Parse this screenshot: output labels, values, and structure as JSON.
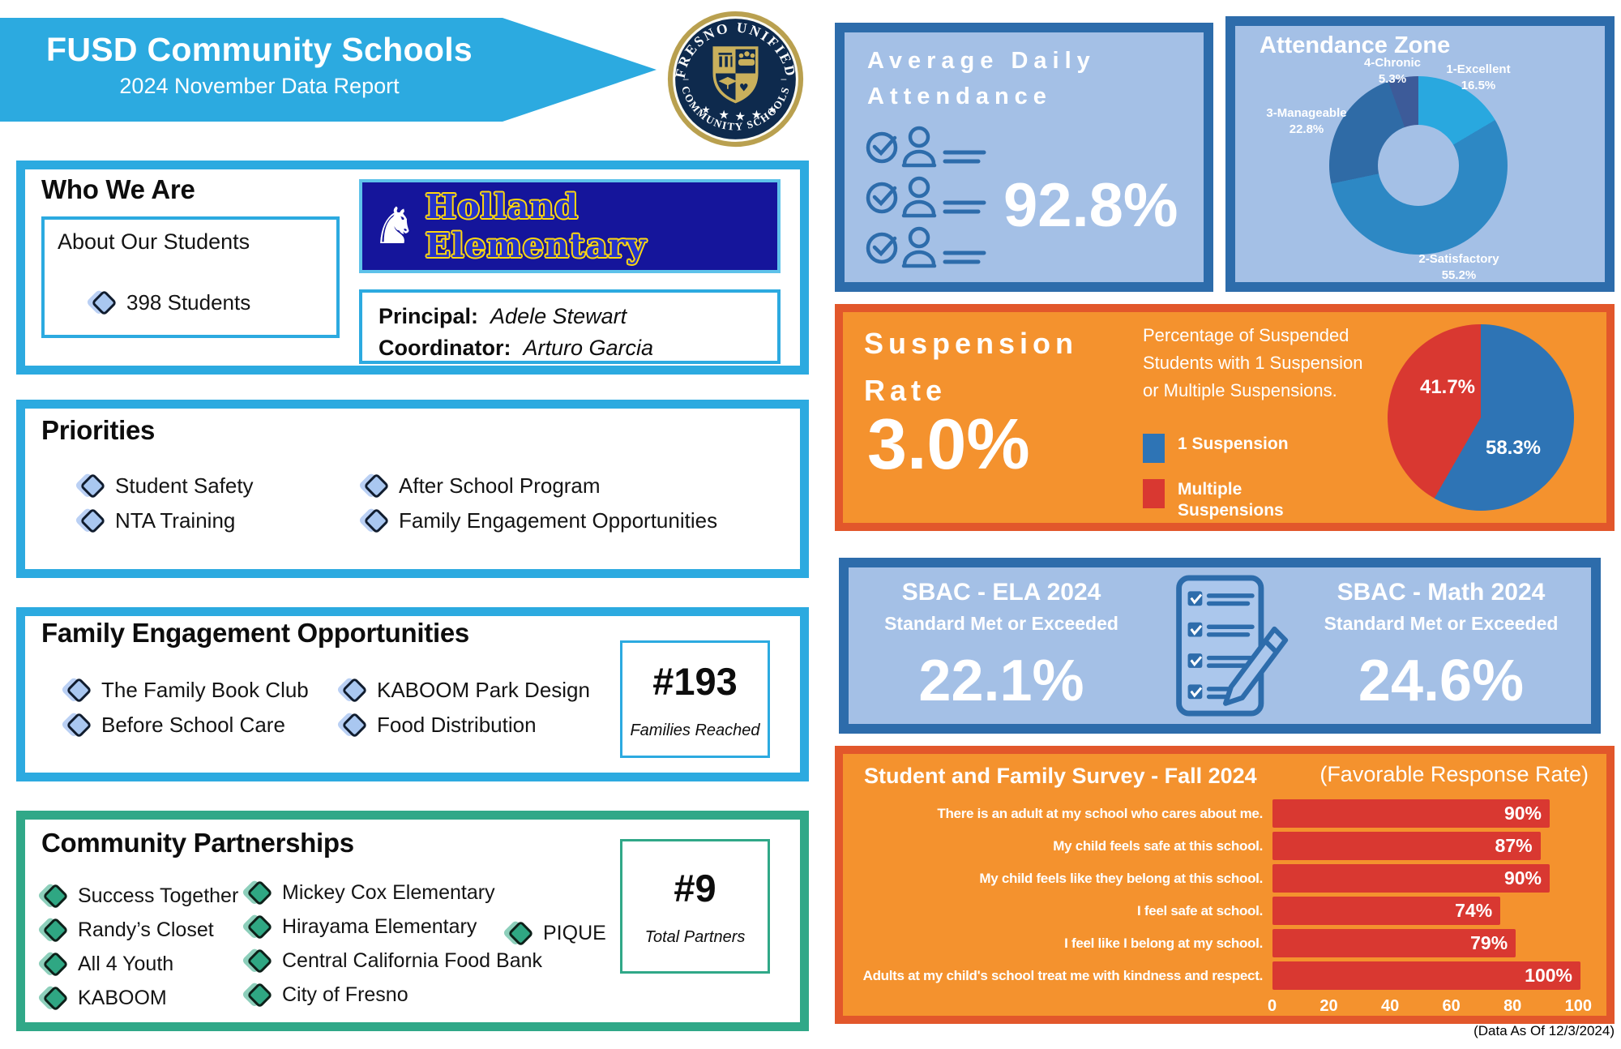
{
  "colors": {
    "cyan": "#2caae0",
    "green": "#30a888",
    "panel_blue_bg": "#a4c0e6",
    "panel_blue_border": "#2d6cab",
    "orange_bg": "#f4922e",
    "orange_border": "#e2572b",
    "bar_red": "#d93831",
    "legend_blue": "#2e74b5",
    "banner_navy": "#15159b",
    "seal_navy": "#0e2a4d",
    "seal_gold": "#b9a04f"
  },
  "header": {
    "title": "FUSD Community Schools",
    "subtitle": "2024 November Data Report",
    "seal_top": "FRESNO UNIFIED",
    "seal_bottom": "COMMUNITY SCHOOLS"
  },
  "who_we_are": {
    "title": "Who We Are",
    "about_title": "About Our Students",
    "students": "398 Students",
    "school_name": "Holland Elementary",
    "principal_label": "Principal:",
    "principal_name": "Adele Stewart",
    "coordinator_label": "Coordinator:",
    "coordinator_name": "Arturo Garcia"
  },
  "priorities": {
    "title": "Priorities",
    "items": [
      "Student Safety",
      "NTA Training",
      "After School Program",
      "Family Engagement Opportunities"
    ]
  },
  "family_engagement": {
    "title": "Family Engagement Opportunities",
    "items": [
      "The Family Book Club",
      "Before School Care",
      "KABOOM Park Design",
      "Food Distribution"
    ],
    "count": "#193",
    "count_label": "Families Reached"
  },
  "partnerships": {
    "title": "Community Partnerships",
    "col1": [
      "Success Together",
      "Randy’s Closet",
      "All 4 Youth",
      "KABOOM"
    ],
    "col2": [
      "Mickey Cox Elementary",
      "Hirayama Elementary",
      "Central California Food Bank",
      "City of Fresno"
    ],
    "col3": [
      "PIQUE"
    ],
    "count": "#9",
    "count_label": "Total Partners"
  },
  "attendance": {
    "title_line1": "Average Daily",
    "title_line2": "Attendance",
    "value": "92.8%"
  },
  "attendance_zone": {
    "title": "Attendance Zone",
    "slices": [
      {
        "name": "1-Excellent",
        "pct": "16.5%"
      },
      {
        "name": "2-Satisfactory",
        "pct": "55.2%"
      },
      {
        "name": "3-Manageable",
        "pct": "22.8%"
      },
      {
        "name": "4-Chronic",
        "pct": "5.3%"
      }
    ]
  },
  "suspension": {
    "title_line1": "Suspension",
    "title_line2": "Rate",
    "value": "3.0%",
    "description": "Percentage of Suspended Students with 1 Suspension or Multiple Suspensions.",
    "legend": [
      {
        "label": "1 Suspension"
      },
      {
        "label": "Multiple Suspensions"
      }
    ],
    "pie_label_multiple": "41.7%",
    "pie_label_single": "58.3%"
  },
  "sbac": {
    "ela_title": "SBAC - ELA 2024",
    "ela_subtitle": "Standard Met or Exceeded",
    "ela_value": "22.1%",
    "math_title": "SBAC - Math 2024",
    "math_subtitle": "Standard Met or Exceeded",
    "math_value": "24.6%"
  },
  "survey": {
    "title": "Student and Family Survey - Fall 2024",
    "subtitle": "(Favorable Response Rate)"
  },
  "footer_note": "(Data As Of 12/3/2024)",
  "chart_data": [
    {
      "type": "pie",
      "style": "donut",
      "title": "Attendance Zone",
      "labels": [
        "1-Excellent",
        "2-Satisfactory",
        "3-Manageable",
        "4-Chronic"
      ],
      "values": [
        16.5,
        55.2,
        22.8,
        5.3
      ],
      "colors": [
        "#29a8df",
        "#2d88c4",
        "#2f6ba6",
        "#3d5b99"
      ],
      "start_angle_deg": 0,
      "direction": "clockwise",
      "legend_position": "around-slices"
    },
    {
      "type": "pie",
      "title": "Percentage of Suspended Students with 1 Suspension or Multiple Suspensions",
      "labels": [
        "1 Suspension",
        "Multiple Suspensions"
      ],
      "values": [
        58.3,
        41.7
      ],
      "colors": [
        "#2e74b5",
        "#d93831"
      ],
      "start_angle_deg": 0,
      "direction": "clockwise",
      "legend_position": "left"
    },
    {
      "type": "bar",
      "orientation": "horizontal",
      "title": "Student and Family Survey - Fall 2024 (Favorable Response Rate)",
      "categories": [
        "There is an adult at my school who cares about me.",
        "My child feels safe at this school.",
        "My child feels like they belong at this school.",
        "I feel safe at school.",
        "I feel like I belong at my school.",
        "Adults at my child's school treat me with kindness and respect."
      ],
      "values": [
        90,
        87,
        90,
        74,
        79,
        100
      ],
      "bar_labels": [
        "90%",
        "87%",
        "90%",
        "74%",
        "79%",
        "100%"
      ],
      "xlim": [
        0,
        100
      ],
      "ticks": [
        0,
        20,
        40,
        60,
        80,
        100
      ],
      "bar_color": "#d93831",
      "grid": false
    }
  ]
}
